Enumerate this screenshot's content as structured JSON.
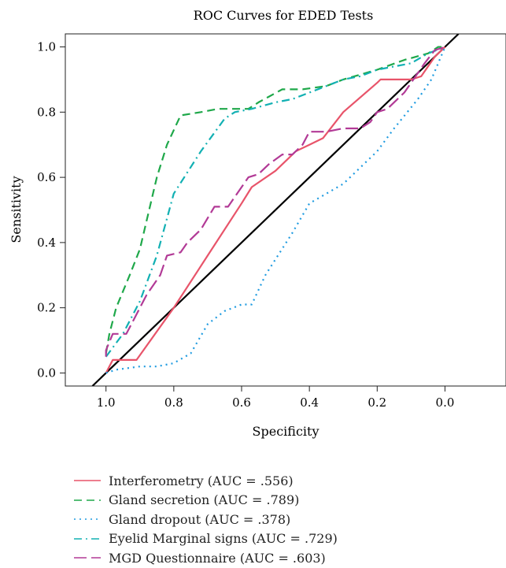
{
  "chart_data": {
    "type": "line",
    "title": "ROC Curves for EDED Tests",
    "xlabel": "Specificity",
    "ylabel": "Sensitivity",
    "xlim": [
      1.12,
      -0.18
    ],
    "ylim": [
      -0.04,
      1.04
    ],
    "x_ticks": [
      1.0,
      0.8,
      0.6,
      0.4,
      0.2,
      0.0
    ],
    "x_tick_labels": [
      "1.0",
      "0.8",
      "0.6",
      "0.4",
      "0.2",
      "0.0"
    ],
    "y_ticks": [
      0.0,
      0.2,
      0.4,
      0.6,
      0.8,
      1.0
    ],
    "y_tick_labels": [
      "0.0",
      "0.2",
      "0.4",
      "0.6",
      "0.8",
      "1.0"
    ],
    "grid": false,
    "legend_position": "below",
    "reference_line": {
      "x": [
        1.0,
        0.0
      ],
      "y": [
        0.0,
        1.0
      ],
      "color": "#000000"
    },
    "series": [
      {
        "name": "Interferometry (AUC = .556)",
        "color": "#e8546a",
        "dash": "solid",
        "x": [
          1.0,
          0.98,
          0.91,
          0.8,
          0.7,
          0.6,
          0.57,
          0.5,
          0.46,
          0.44,
          0.4,
          0.36,
          0.3,
          0.2,
          0.19,
          0.15,
          0.1,
          0.07,
          0.03,
          0.0
        ],
        "y": [
          0.0,
          0.04,
          0.04,
          0.2,
          0.36,
          0.52,
          0.57,
          0.62,
          0.66,
          0.68,
          0.7,
          0.72,
          0.8,
          0.89,
          0.9,
          0.9,
          0.9,
          0.91,
          0.97,
          1.0
        ]
      },
      {
        "name": "Gland secretion (AUC = .789)",
        "color": "#1fa84a",
        "dash": "dashed",
        "x": [
          1.0,
          0.99,
          0.97,
          0.93,
          0.9,
          0.85,
          0.82,
          0.78,
          0.72,
          0.67,
          0.58,
          0.55,
          0.48,
          0.42,
          0.35,
          0.3,
          0.2,
          0.12,
          0.05,
          0.02,
          0.0
        ],
        "y": [
          0.06,
          0.12,
          0.2,
          0.3,
          0.38,
          0.6,
          0.7,
          0.79,
          0.8,
          0.81,
          0.81,
          0.83,
          0.87,
          0.87,
          0.88,
          0.9,
          0.93,
          0.96,
          0.98,
          1.0,
          1.0
        ]
      },
      {
        "name": "Gland dropout (AUC = .378)",
        "color": "#1f9be0",
        "dash": "dotted",
        "x": [
          1.0,
          0.97,
          0.9,
          0.85,
          0.8,
          0.75,
          0.7,
          0.65,
          0.6,
          0.57,
          0.53,
          0.45,
          0.4,
          0.3,
          0.25,
          0.2,
          0.15,
          0.08,
          0.04,
          0.0
        ],
        "y": [
          0.0,
          0.01,
          0.02,
          0.02,
          0.03,
          0.06,
          0.15,
          0.19,
          0.21,
          0.21,
          0.3,
          0.43,
          0.52,
          0.58,
          0.63,
          0.68,
          0.75,
          0.84,
          0.9,
          1.0
        ]
      },
      {
        "name": "Eyelid Marginal signs (AUC = .729)",
        "color": "#12b0b3",
        "dash": "dashdot",
        "x": [
          1.0,
          0.95,
          0.9,
          0.85,
          0.8,
          0.72,
          0.65,
          0.62,
          0.57,
          0.5,
          0.45,
          0.4,
          0.3,
          0.25,
          0.2,
          0.1,
          0.05,
          0.0
        ],
        "y": [
          0.05,
          0.12,
          0.22,
          0.36,
          0.55,
          0.68,
          0.78,
          0.8,
          0.81,
          0.83,
          0.84,
          0.86,
          0.9,
          0.91,
          0.93,
          0.95,
          0.98,
          1.0
        ]
      },
      {
        "name": "MGD Questionnaire (AUC = .603)",
        "color": "#b23a96",
        "dash": "longdash",
        "x": [
          1.0,
          1.0,
          0.98,
          0.94,
          0.92,
          0.88,
          0.84,
          0.82,
          0.78,
          0.76,
          0.72,
          0.68,
          0.64,
          0.62,
          0.58,
          0.55,
          0.52,
          0.48,
          0.45,
          0.42,
          0.4,
          0.35,
          0.3,
          0.25,
          0.22,
          0.2,
          0.17,
          0.12,
          0.1,
          0.06,
          0.03,
          0.0
        ],
        "y": [
          0.05,
          0.07,
          0.12,
          0.12,
          0.16,
          0.24,
          0.3,
          0.36,
          0.37,
          0.4,
          0.44,
          0.51,
          0.51,
          0.54,
          0.6,
          0.61,
          0.64,
          0.67,
          0.67,
          0.7,
          0.74,
          0.74,
          0.75,
          0.75,
          0.77,
          0.8,
          0.81,
          0.86,
          0.89,
          0.95,
          0.99,
          1.0
        ]
      }
    ]
  }
}
